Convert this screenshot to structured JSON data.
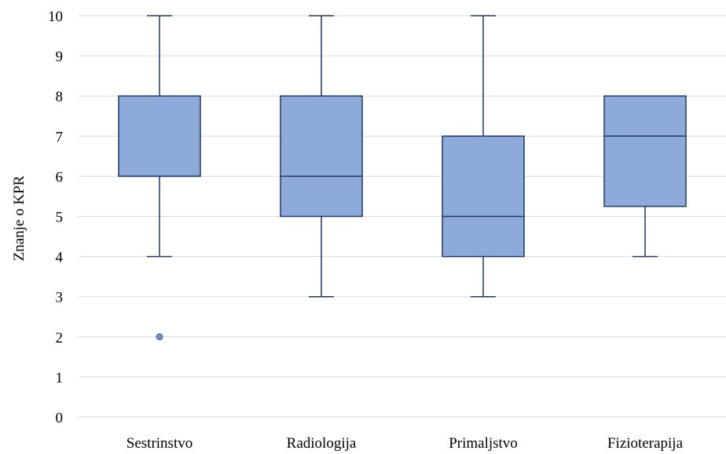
{
  "chart_data": {
    "type": "boxplot",
    "title": "",
    "xlabel": "",
    "ylabel": "Znanje o KPR",
    "ylim": [
      0,
      10
    ],
    "yticks": [
      0,
      1,
      2,
      3,
      4,
      5,
      6,
      7,
      8,
      9,
      10
    ],
    "grid": "horizontal",
    "categories": [
      "Sestrinstvo",
      "Radiologija",
      "Primaljstvo",
      "Fizioterapija"
    ],
    "boxes": [
      {
        "min": 4,
        "q1": 6,
        "median": 6,
        "q3": 8,
        "max": 10,
        "outliers": [
          2
        ]
      },
      {
        "min": 3,
        "q1": 5,
        "median": 6,
        "q3": 8,
        "max": 10,
        "outliers": []
      },
      {
        "min": 3,
        "q1": 4,
        "median": 5,
        "q3": 7,
        "max": 10,
        "outliers": []
      },
      {
        "min": 4,
        "q1": 5.25,
        "median": 7,
        "q3": 8,
        "max": 8,
        "outliers": []
      }
    ],
    "colors": {
      "box_fill": "#8eaadb",
      "box_stroke": "#1f3864",
      "grid": "#d9d9d9",
      "outlier": "#6f8fcc"
    }
  }
}
